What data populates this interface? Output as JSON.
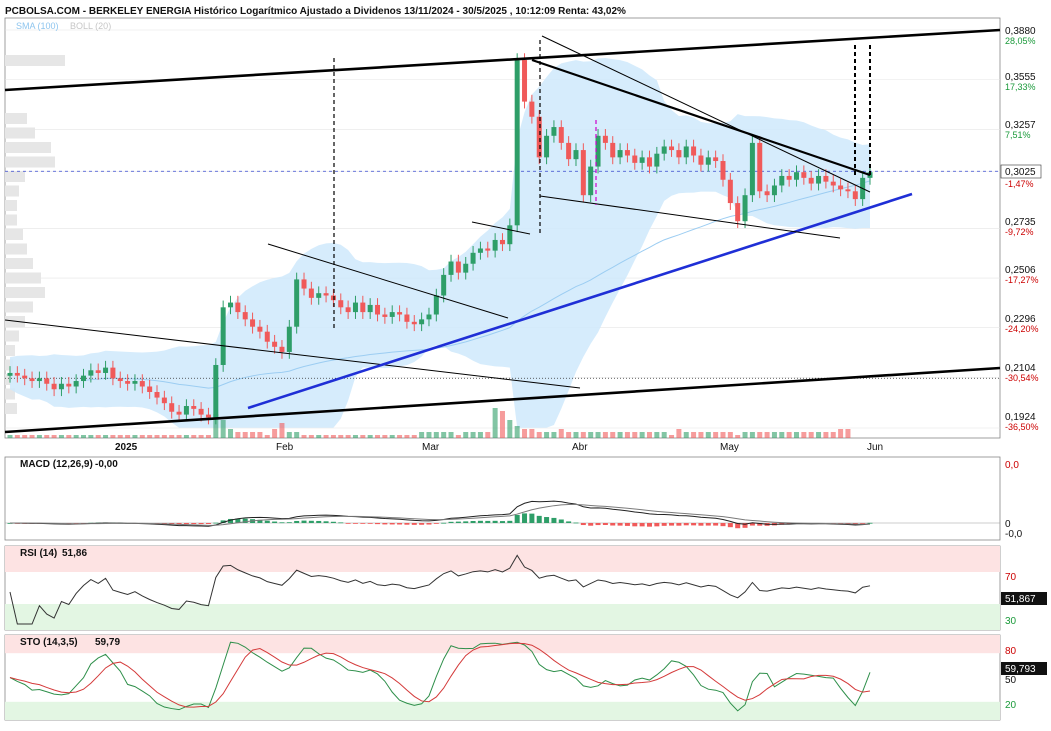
{
  "title": "PCBOLSA.COM - BERKELEY ENERGIA Histórico Logarítmico Ajustado a Dividenos 13/11/2024 - 30/5/2025 , 10:12:09 Renta: 43,02%",
  "legend": {
    "sma": "SMA (100)",
    "boll": "BOLL (20)"
  },
  "colors": {
    "up": "#2e9e68",
    "down": "#f05a5a",
    "boll_fill": "#cfe9fb",
    "sma": "#9ccdf2",
    "trend_blue": "#1f2fd6",
    "grid": "#e5e5e5",
    "accent_red": "#cc0000",
    "accent_green": "#1a9a3a"
  },
  "price_axis": {
    "ticks": [
      {
        "value": "0,3880",
        "pct": "28,05%",
        "pct_color": "green"
      },
      {
        "value": "0,3555",
        "pct": "17,33%",
        "pct_color": "green"
      },
      {
        "value": "0,3257",
        "pct": "7,51%",
        "pct_color": "green"
      },
      {
        "value": "0,3025",
        "pct": "-1,47%",
        "pct_color": "red"
      },
      {
        "value": "0,2735",
        "pct": "-9,72%",
        "pct_color": "red"
      },
      {
        "value": "0,2506",
        "pct": "-17,27%",
        "pct_color": "red"
      },
      {
        "value": "0,2296",
        "pct": "-24,20%",
        "pct_color": "red"
      },
      {
        "value": "0,2104",
        "pct": "-30,54%",
        "pct_color": "red"
      },
      {
        "value": "0,1924",
        "pct": "-36,50%",
        "pct_color": "red"
      }
    ],
    "current_value": "0,3025"
  },
  "x_axis": {
    "labels": [
      "2025",
      "Feb",
      "Mar",
      "Abr",
      "May",
      "Jun"
    ]
  },
  "macd": {
    "label": "MACD (12,26,9)",
    "value": "-0,00",
    "ticks": [
      "0,0",
      "0",
      "-0,0"
    ]
  },
  "rsi": {
    "label": "RSI (14)",
    "value": "51,86",
    "ticks": [
      "70",
      "30"
    ],
    "current": "51,867"
  },
  "sto": {
    "label": "STO (14,3,5)",
    "value": "59,79",
    "ticks": [
      "80",
      "50",
      "20"
    ],
    "current": "59,793"
  },
  "chart_data": {
    "type": "candlestick",
    "title": "BERKELEY ENERGIA",
    "x_range": [
      "2024-12-20",
      "2025-05-30"
    ],
    "ylim": [
      0.1924,
      0.388
    ],
    "y_scale": "log",
    "close_series": [
      0.212,
      0.211,
      0.21,
      0.209,
      0.21,
      0.208,
      0.206,
      0.208,
      0.207,
      0.209,
      0.211,
      0.213,
      0.212,
      0.214,
      0.21,
      0.209,
      0.208,
      0.209,
      0.207,
      0.205,
      0.203,
      0.201,
      0.198,
      0.197,
      0.2,
      0.199,
      0.197,
      0.196,
      0.215,
      0.238,
      0.24,
      0.236,
      0.233,
      0.23,
      0.228,
      0.224,
      0.222,
      0.22,
      0.23,
      0.25,
      0.246,
      0.242,
      0.244,
      0.243,
      0.241,
      0.238,
      0.236,
      0.24,
      0.236,
      0.239,
      0.235,
      0.234,
      0.236,
      0.235,
      0.232,
      0.231,
      0.233,
      0.235,
      0.243,
      0.252,
      0.258,
      0.253,
      0.257,
      0.262,
      0.264,
      0.263,
      0.268,
      0.266,
      0.275,
      0.368,
      0.342,
      0.333,
      0.31,
      0.322,
      0.327,
      0.318,
      0.309,
      0.314,
      0.29,
      0.305,
      0.322,
      0.318,
      0.31,
      0.314,
      0.311,
      0.307,
      0.31,
      0.305,
      0.312,
      0.316,
      0.314,
      0.31,
      0.316,
      0.311,
      0.306,
      0.31,
      0.308,
      0.298,
      0.286,
      0.277,
      0.29,
      0.318,
      0.292,
      0.29,
      0.295,
      0.3,
      0.298,
      0.302,
      0.299,
      0.296,
      0.3,
      0.297,
      0.295,
      0.293,
      0.292,
      0.288,
      0.299,
      0.302
    ],
    "volume_series": [
      1,
      1,
      1,
      1,
      1,
      1,
      1,
      1,
      1,
      1,
      1,
      1,
      1,
      1,
      1,
      1,
      1,
      1,
      1,
      1,
      1,
      1,
      1,
      1,
      1,
      1,
      1,
      1,
      8,
      6,
      3,
      2,
      2,
      2,
      2,
      1,
      3,
      5,
      2,
      2,
      1,
      1,
      1,
      1,
      1,
      1,
      1,
      1,
      1,
      1,
      1,
      1,
      1,
      1,
      1,
      1,
      2,
      2,
      2,
      2,
      2,
      1,
      2,
      2,
      2,
      2,
      10,
      9,
      6,
      4,
      3,
      3,
      2,
      2,
      2,
      3,
      2,
      2,
      2,
      2,
      2,
      2,
      2,
      2,
      2,
      2,
      2,
      2,
      2,
      2,
      1,
      3,
      2,
      2,
      2,
      2,
      2,
      2,
      2,
      1,
      2,
      2,
      2,
      2,
      2,
      2,
      2,
      2,
      2,
      2,
      2,
      2,
      2,
      3,
      3
    ]
  }
}
